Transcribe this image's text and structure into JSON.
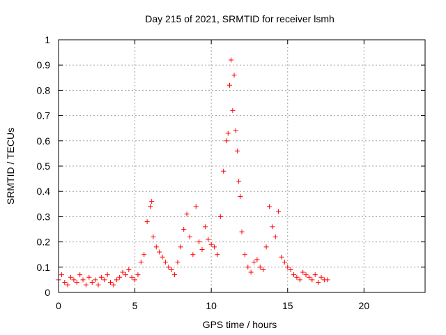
{
  "chart_data": {
    "type": "scatter",
    "title": "Day 215 of 2021, SRMTID for receiver lsmh",
    "xlabel": "GPS time / hours",
    "ylabel": "SRMTID / TECUs",
    "xlim": [
      0,
      24
    ],
    "ylim": [
      0,
      1
    ],
    "xticks": [
      0,
      5,
      10,
      15,
      20
    ],
    "yticks": [
      0,
      0.1,
      0.2,
      0.3,
      0.4,
      0.5,
      0.6,
      0.7,
      0.8,
      0.9,
      1
    ],
    "ytick_labels": [
      "0",
      "0.1",
      "0.2",
      "0.3",
      "0.4",
      "0.5",
      "0.6",
      "0.7",
      "0.8",
      "0.9",
      "1"
    ],
    "grid": true,
    "marker": "+",
    "series": [
      {
        "name": "SRMTID",
        "color": "#ff0000",
        "x": [
          0.0,
          0.2,
          0.4,
          0.6,
          0.8,
          1.0,
          1.2,
          1.4,
          1.6,
          1.8,
          2.0,
          2.2,
          2.4,
          2.6,
          2.8,
          3.0,
          3.2,
          3.4,
          3.6,
          3.8,
          4.0,
          4.2,
          4.4,
          4.6,
          4.8,
          5.0,
          5.2,
          5.4,
          5.6,
          5.8,
          6.0,
          6.1,
          6.2,
          6.4,
          6.6,
          6.8,
          7.0,
          7.2,
          7.4,
          7.6,
          7.8,
          8.0,
          8.2,
          8.4,
          8.6,
          8.8,
          9.0,
          9.2,
          9.4,
          9.6,
          9.8,
          10.0,
          10.2,
          10.4,
          10.6,
          10.8,
          11.0,
          11.1,
          11.2,
          11.3,
          11.4,
          11.5,
          11.6,
          11.7,
          11.8,
          11.9,
          12.0,
          12.2,
          12.4,
          12.6,
          12.8,
          13.0,
          13.2,
          13.4,
          13.6,
          13.8,
          14.0,
          14.2,
          14.4,
          14.6,
          14.8,
          15.0,
          15.2,
          15.4,
          15.6,
          15.8,
          16.0,
          16.2,
          16.4,
          16.6,
          16.8,
          17.0,
          17.2,
          17.4,
          17.6
        ],
        "y": [
          0.05,
          0.07,
          0.04,
          0.03,
          0.06,
          0.05,
          0.04,
          0.07,
          0.05,
          0.03,
          0.06,
          0.04,
          0.05,
          0.03,
          0.06,
          0.05,
          0.07,
          0.04,
          0.03,
          0.05,
          0.06,
          0.08,
          0.07,
          0.09,
          0.06,
          0.05,
          0.07,
          0.12,
          0.15,
          0.28,
          0.34,
          0.36,
          0.22,
          0.18,
          0.16,
          0.14,
          0.12,
          0.1,
          0.09,
          0.07,
          0.12,
          0.18,
          0.25,
          0.31,
          0.22,
          0.15,
          0.34,
          0.2,
          0.17,
          0.26,
          0.21,
          0.19,
          0.18,
          0.15,
          0.3,
          0.48,
          0.6,
          0.63,
          0.82,
          0.92,
          0.72,
          0.86,
          0.64,
          0.56,
          0.44,
          0.38,
          0.24,
          0.15,
          0.1,
          0.08,
          0.12,
          0.13,
          0.1,
          0.09,
          0.18,
          0.34,
          0.26,
          0.22,
          0.32,
          0.14,
          0.12,
          0.1,
          0.09,
          0.07,
          0.06,
          0.05,
          0.08,
          0.07,
          0.06,
          0.05,
          0.07,
          0.04,
          0.06,
          0.05,
          0.05
        ]
      }
    ]
  }
}
